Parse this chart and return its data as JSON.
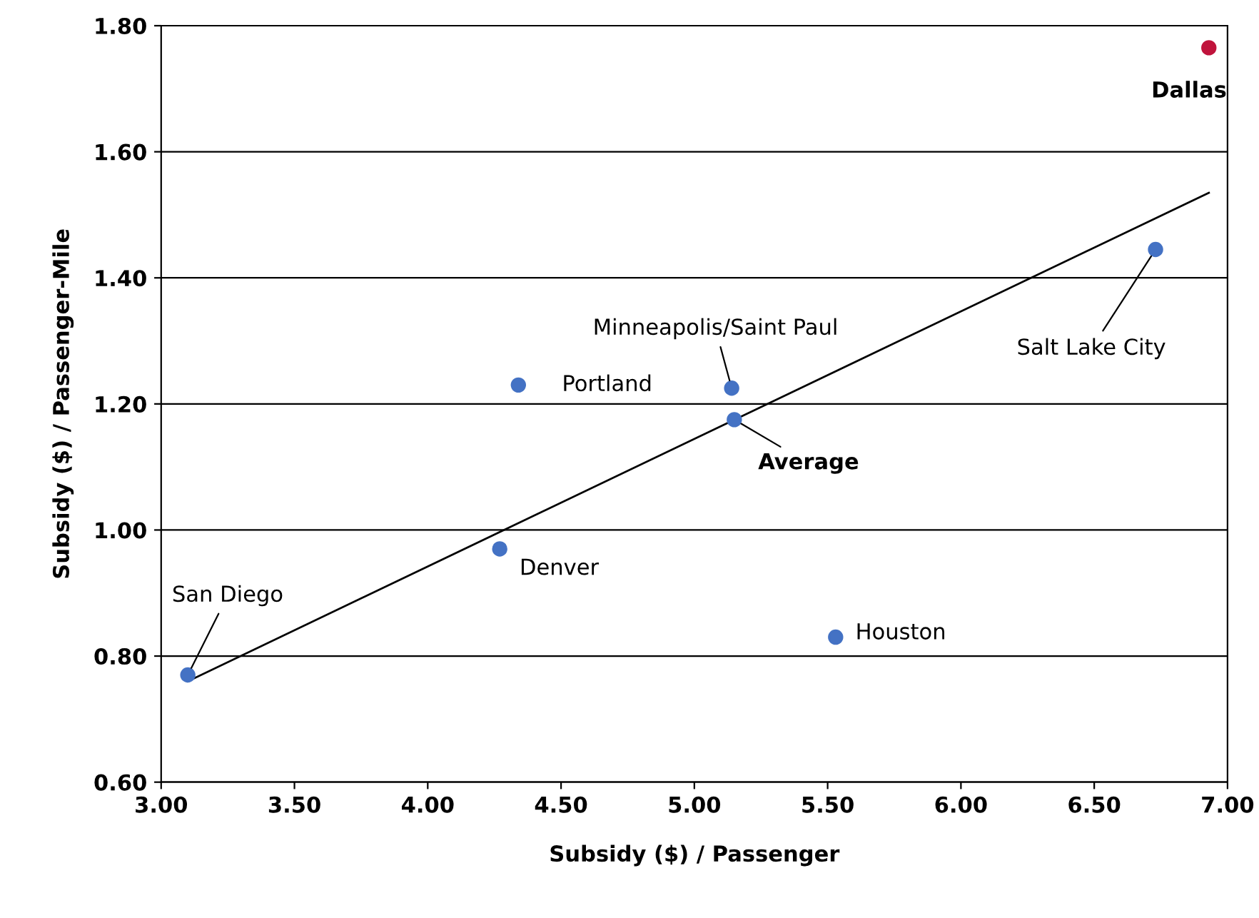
{
  "chart_data": {
    "type": "scatter",
    "xlabel": "Subsidy ($) / Passenger",
    "ylabel": "Subsidy ($) / Passenger-Mile",
    "xlim": [
      3.0,
      7.0
    ],
    "xticks": [
      {
        "value": 3.0,
        "label": "3.00"
      },
      {
        "value": 3.5,
        "label": "3.50"
      },
      {
        "value": 4.0,
        "label": "4.00"
      },
      {
        "value": 4.5,
        "label": "4.50"
      },
      {
        "value": 5.0,
        "label": "5.00"
      },
      {
        "value": 5.5,
        "label": "5.50"
      },
      {
        "value": 6.0,
        "label": "6.00"
      },
      {
        "value": 6.5,
        "label": "6.50"
      },
      {
        "value": 7.0,
        "label": "7.00"
      }
    ],
    "ylim": [
      0.6,
      1.8
    ],
    "yticks": [
      {
        "value": 0.6,
        "label": "0.60"
      },
      {
        "value": 0.8,
        "label": "0.80"
      },
      {
        "value": 1.0,
        "label": "1.00"
      },
      {
        "value": 1.2,
        "label": "1.20"
      },
      {
        "value": 1.4,
        "label": "1.40"
      },
      {
        "value": 1.6,
        "label": "1.60"
      },
      {
        "value": 1.8,
        "label": "1.80"
      }
    ],
    "grid": "y",
    "legend": false,
    "marker": "circle",
    "series": [
      {
        "type": "line",
        "marker": "none",
        "color": "#000000",
        "x": [
          3.1,
          6.93
        ],
        "values": [
          0.76,
          1.535
        ]
      },
      {
        "color": "#4472c4",
        "x": [
          3.1,
          4.27,
          4.34,
          5.14,
          5.15,
          5.53,
          6.73
        ],
        "values": [
          0.77,
          0.97,
          1.23,
          1.225,
          1.175,
          0.83,
          1.445
        ]
      },
      {
        "color": "#c0143c",
        "x": [
          6.93
        ],
        "values": [
          1.765
        ]
      }
    ],
    "annotations": [
      {
        "text": "San Diego",
        "x": 3.1,
        "y": 0.77
      },
      {
        "text": "Denver",
        "x": 4.27,
        "y": 0.97
      },
      {
        "text": "Portland",
        "x": 4.34,
        "y": 1.23
      },
      {
        "text": "Minneapolis/Saint Paul",
        "x": 5.14,
        "y": 1.225
      },
      {
        "text": "Average",
        "x": 5.15,
        "y": 1.175
      },
      {
        "text": "Houston",
        "x": 5.53,
        "y": 0.83
      },
      {
        "text": "Salt Lake City",
        "x": 6.73,
        "y": 1.445
      },
      {
        "text": "Dallas",
        "x": 6.93,
        "y": 1.765
      }
    ]
  }
}
